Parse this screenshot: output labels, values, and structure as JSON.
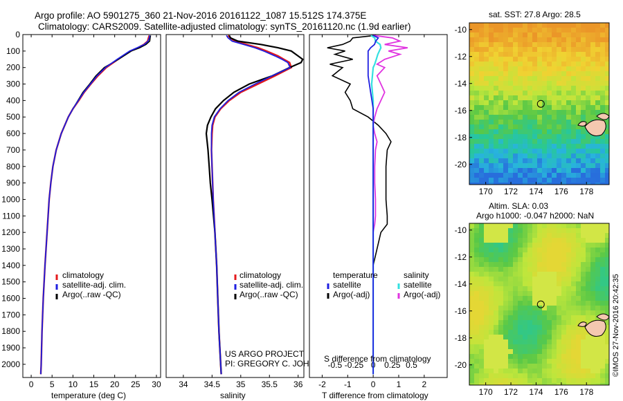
{
  "title_line1": "Argo profile: AO 5901275_360 21-Nov-2016 20161122_1087 15.512S 174.375E",
  "title_line2": "Climatology: CARS2009. Satellite-adjusted climatology: synTS_20161120.nc (1.9d earlier)",
  "project_line1": "US ARGO PROJECT",
  "project_line2": "PI: GREGORY C. JOHNSON",
  "credit": "©IMOS 27-Nov-2016 20:42:35",
  "colors": {
    "climatology": "#e41a1c",
    "satellite": "#1f1fe0",
    "argo": "#000000",
    "sat_salinity": "#33e0e0",
    "argo_salinity": "#e032e0"
  },
  "chart_data": [
    {
      "type": "line",
      "name": "temperature-profile",
      "xlabel": "temperature (deg C)",
      "xlim": [
        -2,
        31
      ],
      "ylim": [
        2080,
        0
      ],
      "xticks": [
        "0",
        "5",
        "10",
        "15",
        "20",
        "25",
        "30"
      ],
      "yticks": [
        "0",
        "100",
        "200",
        "300",
        "400",
        "500",
        "600",
        "700",
        "800",
        "900",
        "1000",
        "1100",
        "1200",
        "1300",
        "1400",
        "1500",
        "1600",
        "1700",
        "1800",
        "1900",
        "2000"
      ],
      "legend": [
        "climatology",
        "satellite-adj. clim.",
        "Argo(..raw -QC)"
      ],
      "depth": [
        5,
        20,
        40,
        60,
        80,
        100,
        150,
        200,
        250,
        300,
        350,
        400,
        450,
        500,
        600,
        700,
        800,
        900,
        1000,
        1200,
        1400,
        1600,
        1800,
        2000,
        2060
      ],
      "series": [
        {
          "name": "climatology",
          "values": [
            28.3,
            28.1,
            27.9,
            27.0,
            25.6,
            23.8,
            20.8,
            18.0,
            16.0,
            14.3,
            12.7,
            11.4,
            10.0,
            8.9,
            7.2,
            6.0,
            5.2,
            4.7,
            4.3,
            3.8,
            3.3,
            2.9,
            2.6,
            2.4,
            2.3
          ]
        },
        {
          "name": "satellite-adj. clim.",
          "values": [
            28.4,
            28.3,
            28.0,
            27.1,
            25.4,
            23.6,
            20.6,
            17.8,
            15.8,
            14.2,
            12.6,
            11.3,
            10.0,
            8.9,
            7.2,
            6.0,
            5.2,
            4.7,
            4.3,
            3.8,
            3.3,
            2.9,
            2.6,
            2.4,
            2.3
          ]
        },
        {
          "name": "Argo(..raw -QC)",
          "values": [
            28.6,
            28.5,
            28.4,
            27.5,
            26.0,
            24.0,
            20.9,
            17.5,
            15.5,
            14.0,
            12.4,
            11.2,
            10.0,
            8.9,
            7.2,
            6.0,
            5.2,
            4.7,
            4.3,
            3.8,
            3.3,
            2.9,
            2.6,
            2.4,
            2.3
          ]
        }
      ]
    },
    {
      "type": "line",
      "name": "salinity-profile",
      "xlabel": "salinity",
      "xlim": [
        33.7,
        36.1
      ],
      "ylim": [
        2080,
        0
      ],
      "xticks": [
        "34",
        "34.5",
        "35",
        "35.5",
        "36"
      ],
      "legend": [
        "climatology",
        "satellite-adj. clim.",
        "Argo(..raw -QC)"
      ],
      "depth": [
        5,
        20,
        40,
        60,
        80,
        100,
        130,
        150,
        170,
        200,
        250,
        300,
        350,
        400,
        450,
        500,
        550,
        600,
        700,
        800,
        900,
        1000,
        1200,
        1400,
        1600,
        1800,
        2000,
        2060
      ],
      "series": [
        {
          "name": "climatology",
          "values": [
            34.78,
            34.82,
            34.9,
            35.1,
            35.3,
            35.45,
            35.65,
            35.75,
            35.85,
            35.88,
            35.6,
            35.3,
            35.0,
            34.8,
            34.65,
            34.55,
            34.51,
            34.5,
            34.49,
            34.5,
            34.51,
            34.52,
            34.55,
            34.58,
            34.6,
            34.62,
            34.65,
            34.66
          ]
        },
        {
          "name": "satellite-adj. clim.",
          "values": [
            34.75,
            34.78,
            34.85,
            35.05,
            35.25,
            35.4,
            35.6,
            35.72,
            35.82,
            35.86,
            35.55,
            35.25,
            34.97,
            34.78,
            34.64,
            34.54,
            34.5,
            34.49,
            34.49,
            34.5,
            34.51,
            34.52,
            34.55,
            34.58,
            34.6,
            34.62,
            34.65,
            34.66
          ]
        },
        {
          "name": "Argo(..raw -QC)",
          "values": [
            34.8,
            34.82,
            34.95,
            35.35,
            35.65,
            35.88,
            36.0,
            36.08,
            36.05,
            35.85,
            35.55,
            35.15,
            34.88,
            34.7,
            34.56,
            34.48,
            34.42,
            34.4,
            34.43,
            34.45,
            34.47,
            34.5,
            34.55,
            34.58,
            34.6,
            34.62,
            34.65,
            34.66
          ]
        }
      ]
    },
    {
      "type": "line",
      "name": "difference-profile",
      "xlabel_top": "S difference from climatology",
      "xlabel": "T difference from climatology",
      "xlim": [
        -2.5,
        2.9
      ],
      "ylim": [
        2080,
        0
      ],
      "xticks": [
        "-2",
        "-1",
        "0",
        "1",
        "2"
      ],
      "xticks_top": [
        "-0.5",
        "-0.25",
        "0",
        "0.25",
        "0.5"
      ],
      "legend_headers": [
        "temperature",
        "salinity"
      ],
      "legend": [
        "satellite",
        "Argo(-adj)",
        "satellite",
        "Argo(-adj)"
      ],
      "depth": [
        5,
        20,
        40,
        60,
        80,
        100,
        120,
        150,
        180,
        200,
        250,
        300,
        350,
        400,
        450,
        500,
        550,
        600,
        650,
        700,
        800,
        900,
        1000,
        1100,
        1150,
        1200,
        1400,
        1600,
        1800,
        2000,
        2060
      ],
      "series": [
        {
          "name": "T satellite",
          "values": [
            0.0,
            0.2,
            0.1,
            0.05,
            -0.1,
            -0.2,
            -0.2,
            -0.2,
            -0.2,
            -0.2,
            -0.2,
            -0.15,
            -0.1,
            -0.05,
            0.0,
            0.0,
            0.0,
            0.0,
            0.0,
            0.0,
            0.0,
            0.0,
            0.0,
            0.0,
            0.0,
            0.0,
            0.0,
            0.0,
            0.0,
            0.0,
            0.0
          ]
        },
        {
          "name": "T Argo(-adj)",
          "values": [
            0.1,
            -0.8,
            -0.9,
            -1.2,
            -1.8,
            -1.1,
            -1.5,
            -0.8,
            -1.7,
            -1.2,
            -1.6,
            -0.9,
            -1.1,
            -0.9,
            -0.8,
            -0.2,
            0.2,
            0.5,
            0.7,
            0.55,
            0.5,
            0.5,
            0.5,
            0.55,
            0.55,
            0.3,
            0.0,
            0.0,
            0.0,
            0.0,
            0.0
          ]
        },
        {
          "name": "S satellite",
          "values": [
            -0.03,
            0.02,
            0.03,
            0.09,
            0.1,
            0.08,
            0.06,
            0.04,
            0.02,
            0.0,
            -0.01,
            -0.02,
            -0.01,
            0.0,
            0.0,
            0.0,
            0.0,
            0.0,
            0.0,
            0.0,
            0.0,
            0.0,
            0.0,
            0.0,
            0.0,
            0.0,
            0.0,
            0.0,
            0.0,
            0.0,
            0.0
          ]
        },
        {
          "name": "S Argo(-adj)",
          "values": [
            0.0,
            0.25,
            0.35,
            0.15,
            0.45,
            0.2,
            0.35,
            0.15,
            0.05,
            0.15,
            0.05,
            0.1,
            0.15,
            0.1,
            0.05,
            0.02,
            0.0,
            0.02,
            0.05,
            0.03,
            0.02,
            0.02,
            0.03,
            0.03,
            0.02,
            0.0,
            0.0,
            0.0,
            0.0,
            0.0,
            0.0
          ]
        }
      ]
    },
    {
      "type": "heatmap",
      "name": "sst-map",
      "title": "sat. SST: 27.8 Argo: 28.5",
      "xticks": [
        "170",
        "172",
        "174",
        "176",
        "178"
      ],
      "yticks": [
        "-10",
        "-12",
        "-14",
        "-16",
        "-18",
        "-20"
      ],
      "argo_lon": 174.375,
      "argo_lat": -15.512
    },
    {
      "type": "heatmap",
      "name": "sla-map",
      "title_line1": "Altim. SLA: 0.03",
      "title_line2": "Argo h1000: -0.047 h2000: NaN",
      "xticks": [
        "170",
        "172",
        "174",
        "176",
        "178"
      ],
      "yticks": [
        "-10",
        "-12",
        "-14",
        "-16",
        "-18",
        "-20"
      ],
      "argo_lon": 174.375,
      "argo_lat": -15.512
    }
  ]
}
